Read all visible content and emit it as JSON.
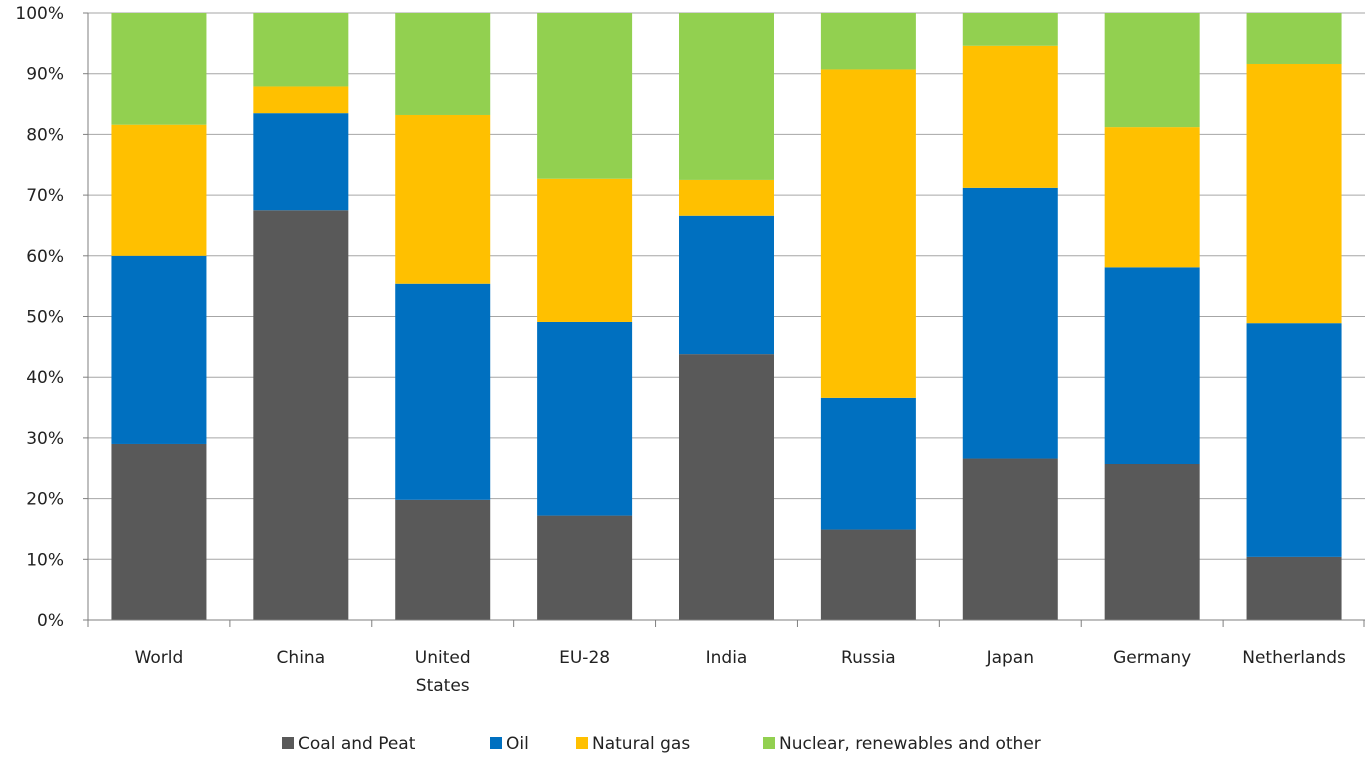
{
  "chart_data": {
    "type": "bar",
    "stacked": true,
    "percent": true,
    "title": "",
    "xlabel": "",
    "ylabel": "",
    "ylim": [
      0,
      100
    ],
    "yticks": [
      "0%",
      "10%",
      "20%",
      "30%",
      "40%",
      "50%",
      "60%",
      "70%",
      "80%",
      "90%",
      "100%"
    ],
    "grid": "horizontal",
    "legend": "bottom",
    "categories": [
      [
        "World"
      ],
      [
        "China"
      ],
      [
        "United",
        "States"
      ],
      [
        "EU-28"
      ],
      [
        "India"
      ],
      [
        "Russia"
      ],
      [
        "Japan"
      ],
      [
        "Germany"
      ],
      [
        "Netherlands"
      ]
    ],
    "series": [
      {
        "name": "Coal and Peat",
        "color": "#595959",
        "values": [
          29,
          67.5,
          19.8,
          17.2,
          43.8,
          14.9,
          26.6,
          25.7,
          10.4
        ]
      },
      {
        "name": "Oil",
        "color": "#0070C0",
        "values": [
          31,
          16,
          35.6,
          31.9,
          22.8,
          21.7,
          44.6,
          32.4,
          38.5
        ]
      },
      {
        "name": "Natural gas",
        "color": "#FFC000",
        "values": [
          21.6,
          4.4,
          27.8,
          23.6,
          5.9,
          54.1,
          23.4,
          23.1,
          42.7
        ]
      },
      {
        "name": "Nuclear, renewables and other",
        "color": "#92D050",
        "values": [
          18.4,
          12.1,
          16.8,
          27.3,
          27.5,
          9.3,
          5.4,
          18.8,
          8.4
        ]
      }
    ]
  }
}
